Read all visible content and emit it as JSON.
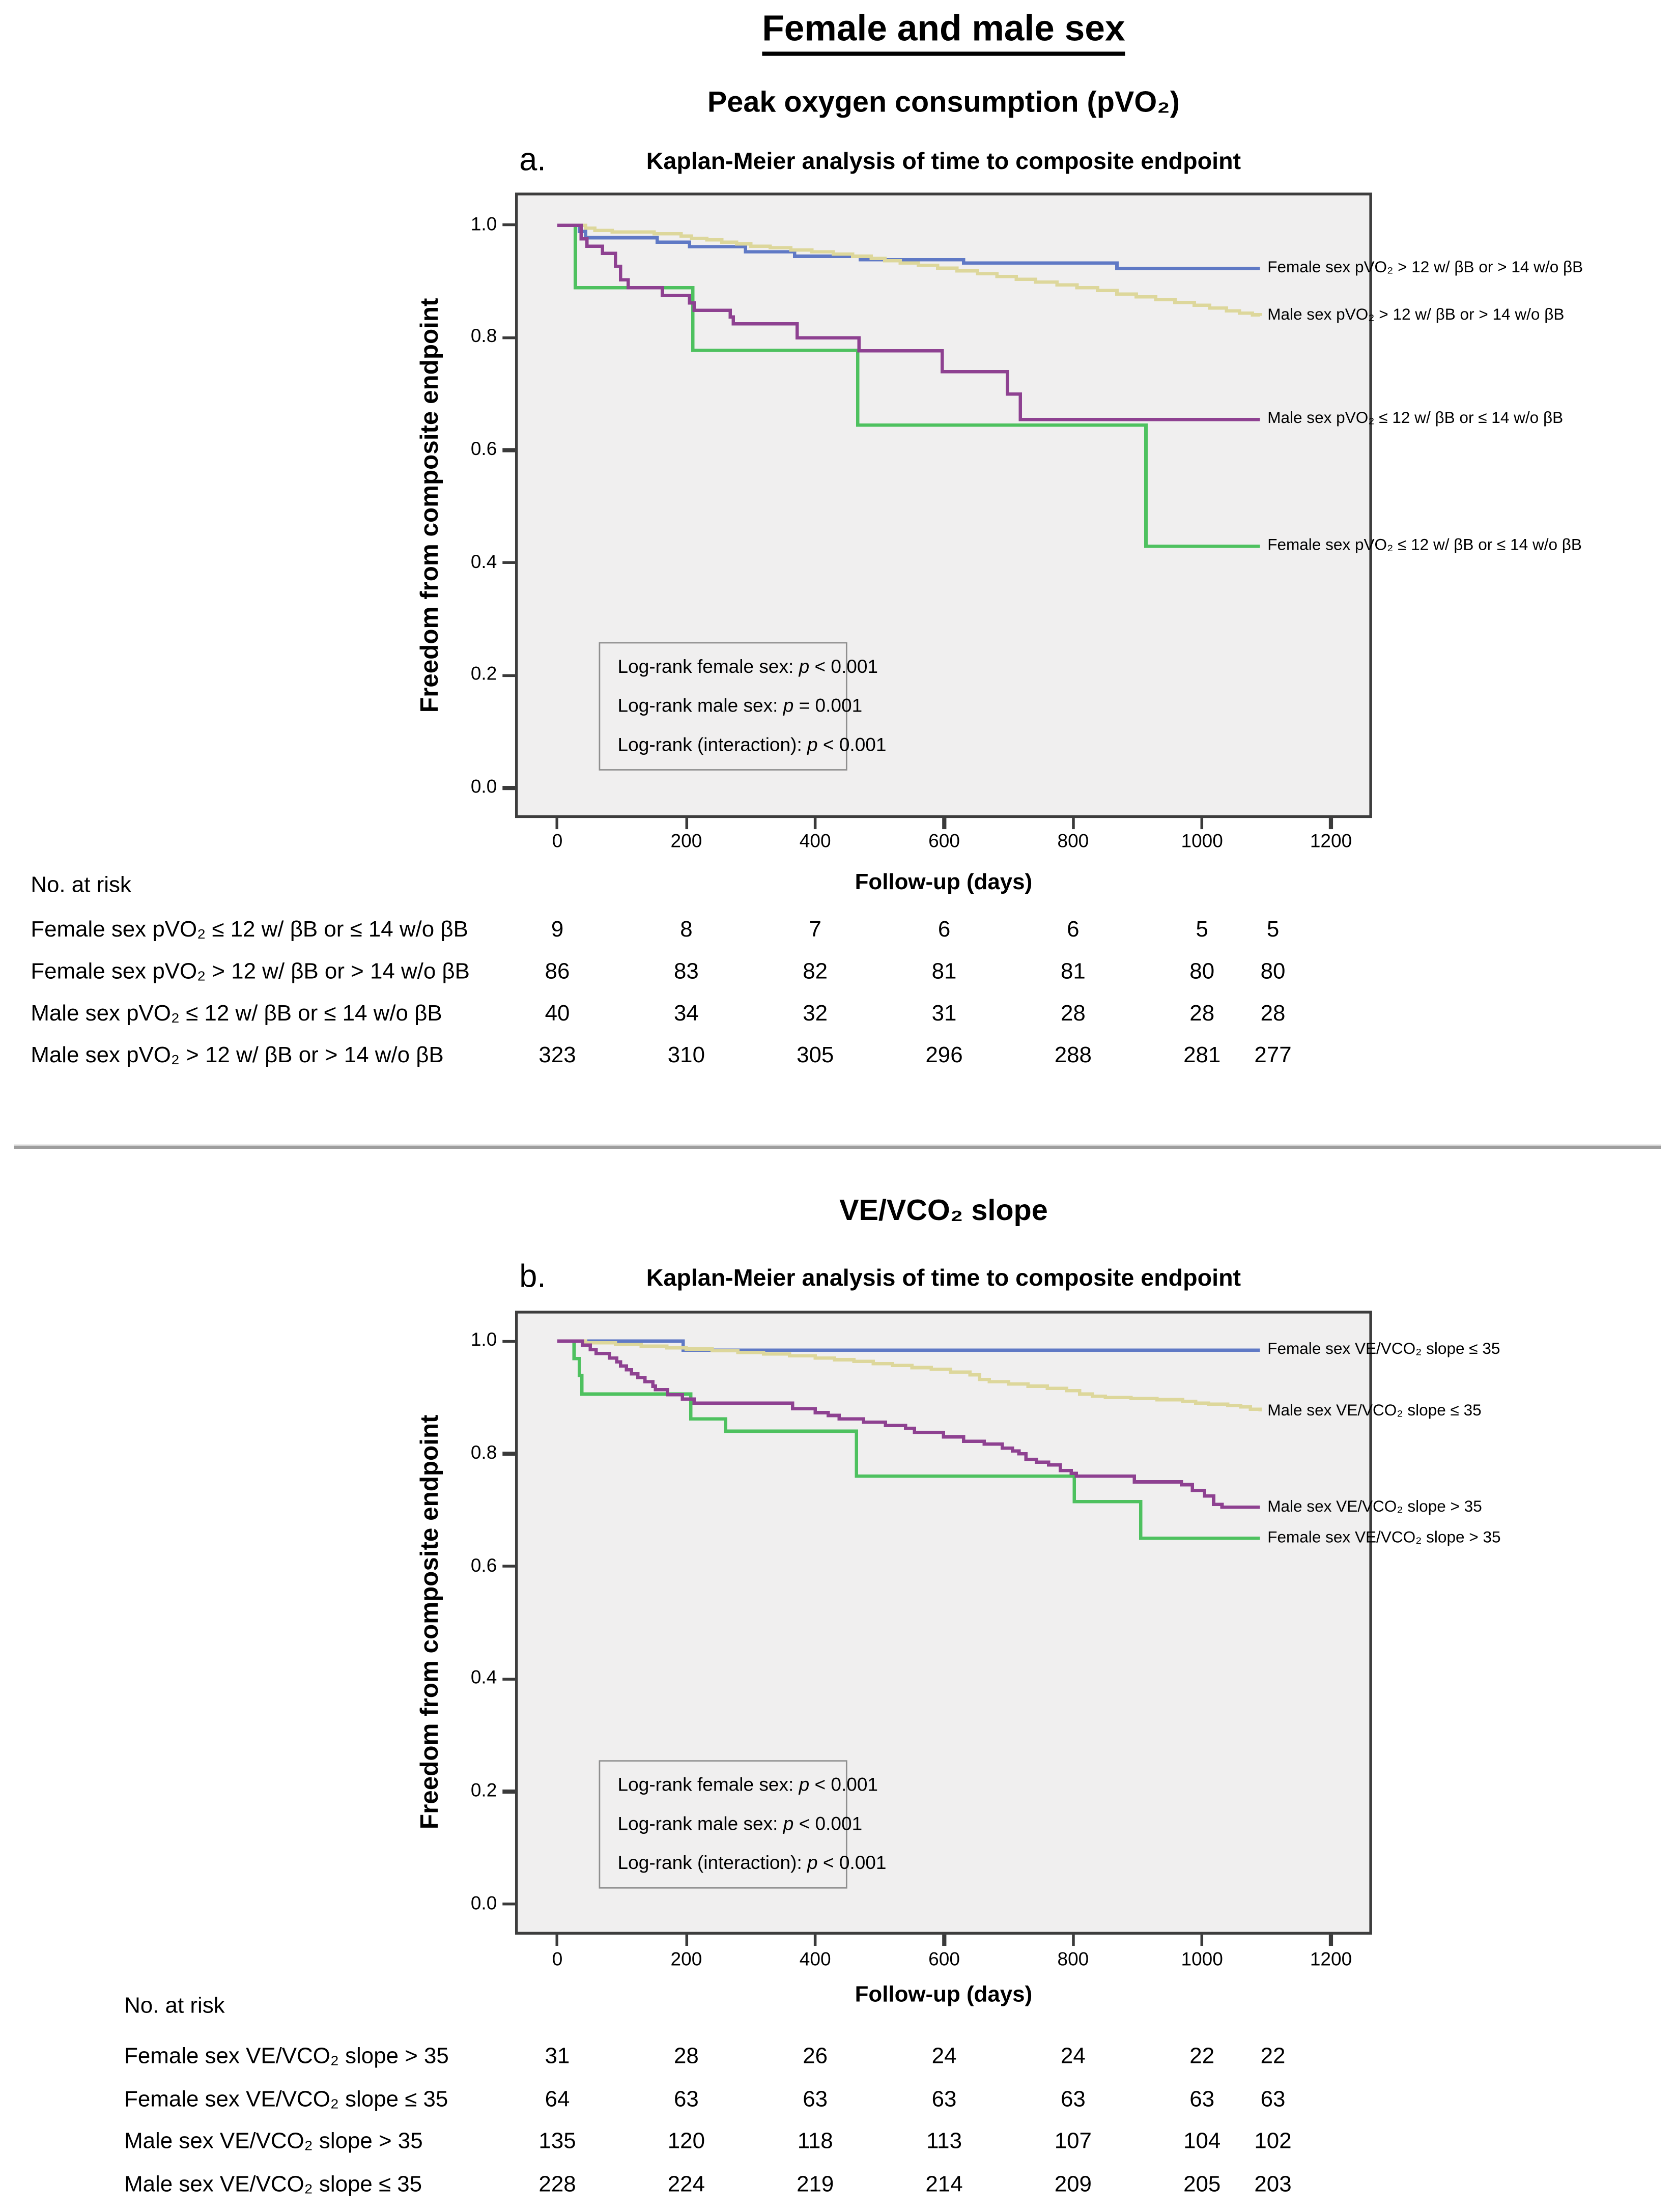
{
  "page_title": "Female and male sex",
  "chart_data": [
    {
      "type": "line",
      "step": true,
      "panel_letter": "a.",
      "section_title": "Peak oxygen consumption (pVO₂)",
      "title": "Kaplan-Meier analysis of time to composite endpoint",
      "xlabel": "Follow-up (days)",
      "ylabel": "Freedom from composite endpoint",
      "xlim": [
        0,
        1200
      ],
      "ylim": [
        0.0,
        1.0
      ],
      "x_ticks": [
        "0",
        "200",
        "400",
        "600",
        "800",
        "1000",
        "1200"
      ],
      "y_ticks": [
        "1.0",
        "0.8",
        "0.6",
        "0.4",
        "0.2",
        "0.0"
      ],
      "grid": false,
      "legend_position": "right",
      "plot_background": "#f0efef",
      "series": [
        {
          "name": "Female sex pVO₂ > 12 w/ βB or > 14 w/o βB",
          "color": "#5f79c5",
          "points": [
            [
              0,
              1
            ],
            [
              34,
              0.989
            ],
            [
              44,
              0.978
            ],
            [
              155,
              0.97
            ],
            [
              205,
              0.962
            ],
            [
              292,
              0.953
            ],
            [
              368,
              0.945
            ],
            [
              470,
              0.939
            ],
            [
              630,
              0.933
            ],
            [
              868,
              0.923
            ],
            [
              1090,
              0.923
            ]
          ]
        },
        {
          "name": "Male sex pVO₂ > 12 w/ βB or > 14 w/o βB",
          "color": "#ddd79b",
          "points": [
            [
              0,
              1
            ],
            [
              44,
              0.995
            ],
            [
              58,
              0.991
            ],
            [
              85,
              0.988
            ],
            [
              150,
              0.985
            ],
            [
              192,
              0.981
            ],
            [
              208,
              0.977
            ],
            [
              232,
              0.974
            ],
            [
              255,
              0.97
            ],
            [
              278,
              0.967
            ],
            [
              300,
              0.963
            ],
            [
              330,
              0.96
            ],
            [
              362,
              0.956
            ],
            [
              395,
              0.953
            ],
            [
              428,
              0.949
            ],
            [
              458,
              0.945
            ],
            [
              487,
              0.941
            ],
            [
              508,
              0.937
            ],
            [
              532,
              0.933
            ],
            [
              560,
              0.929
            ],
            [
              590,
              0.924
            ],
            [
              620,
              0.919
            ],
            [
              652,
              0.914
            ],
            [
              682,
              0.909
            ],
            [
              712,
              0.904
            ],
            [
              742,
              0.899
            ],
            [
              775,
              0.894
            ],
            [
              806,
              0.889
            ],
            [
              838,
              0.884
            ],
            [
              868,
              0.878
            ],
            [
              898,
              0.873
            ],
            [
              928,
              0.868
            ],
            [
              958,
              0.863
            ],
            [
              988,
              0.858
            ],
            [
              1012,
              0.853
            ],
            [
              1038,
              0.848
            ],
            [
              1058,
              0.844
            ],
            [
              1078,
              0.841
            ],
            [
              1090,
              0.839
            ]
          ]
        },
        {
          "name": "Male sex pVO₂ ≤ 12 w/ βB or ≤ 14 w/o βB",
          "color": "#8e4191",
          "points": [
            [
              0,
              1
            ],
            [
              37,
              0.976
            ],
            [
              46,
              0.963
            ],
            [
              70,
              0.95
            ],
            [
              90,
              0.927
            ],
            [
              98,
              0.903
            ],
            [
              110,
              0.889
            ],
            [
              163,
              0.875
            ],
            [
              205,
              0.862
            ],
            [
              212,
              0.849
            ],
            [
              268,
              0.837
            ],
            [
              273,
              0.825
            ],
            [
              372,
              0.8
            ],
            [
              468,
              0.777
            ],
            [
              597,
              0.74
            ],
            [
              698,
              0.7
            ],
            [
              718,
              0.655
            ],
            [
              1090,
              0.655
            ]
          ]
        },
        {
          "name": "Female sex pVO₂ ≤ 12 w/ βB or ≤ 14 w/o βB",
          "color": "#4ec15f",
          "points": [
            [
              0,
              1
            ],
            [
              28,
              0.889
            ],
            [
              210,
              0.778
            ],
            [
              466,
              0.645
            ],
            [
              913,
              0.43
            ],
            [
              1090,
              0.43
            ]
          ]
        }
      ],
      "logrank": [
        {
          "pre": "Log-rank female sex: ",
          "italic": "p",
          "post": " < 0.001"
        },
        {
          "pre": "Log-rank male sex: ",
          "italic": "p",
          "post": " = 0.001"
        },
        {
          "pre": "Log-rank (interaction): ",
          "italic": "p",
          "post": " < 0.001"
        }
      ],
      "risk_table": {
        "heading": "No. at risk",
        "columns_days": [
          0,
          200,
          400,
          600,
          800,
          1000,
          1110
        ],
        "rows": [
          {
            "label": "Female sex pVO₂ ≤ 12 w/ βB or ≤ 14 w/o βB",
            "values": [
              "9",
              "8",
              "7",
              "6",
              "6",
              "5",
              "5"
            ]
          },
          {
            "label": "Female sex pVO₂ > 12 w/ βB or > 14 w/o βB",
            "values": [
              "86",
              "83",
              "82",
              "81",
              "81",
              "80",
              "80"
            ]
          },
          {
            "label": "Male sex pVO₂ ≤ 12 w/ βB or ≤ 14 w/o βB",
            "values": [
              "40",
              "34",
              "32",
              "31",
              "28",
              "28",
              "28"
            ]
          },
          {
            "label": "Male sex pVO₂ > 12 w/ βB or > 14 w/o βB",
            "values": [
              "323",
              "310",
              "305",
              "296",
              "288",
              "281",
              "277"
            ]
          }
        ]
      }
    },
    {
      "type": "line",
      "step": true,
      "panel_letter": "b.",
      "section_title": "VE/VCO₂ slope",
      "title": "Kaplan-Meier analysis of time to composite endpoint",
      "xlabel": "Follow-up (days)",
      "ylabel": "Freedom from composite endpoint",
      "xlim": [
        0,
        1200
      ],
      "ylim": [
        0.0,
        1.0
      ],
      "x_ticks": [
        "0",
        "200",
        "400",
        "600",
        "800",
        "1000",
        "1200"
      ],
      "y_ticks": [
        "1.0",
        "0.8",
        "0.6",
        "0.4",
        "0.2",
        "0.0"
      ],
      "grid": false,
      "legend_position": "right",
      "plot_background": "#f0efef",
      "series": [
        {
          "name": "Female sex VE/VCO₂ slope ≤ 35",
          "color": "#5f79c5",
          "points": [
            [
              0,
              1
            ],
            [
              195,
              0.984
            ],
            [
              1090,
              0.984
            ]
          ]
        },
        {
          "name": "Male sex VE/VCO₂ slope ≤ 35",
          "color": "#ddd79b",
          "points": [
            [
              0,
              1
            ],
            [
              44,
              0.997
            ],
            [
              90,
              0.994
            ],
            [
              130,
              0.991
            ],
            [
              170,
              0.988
            ],
            [
              200,
              0.986
            ],
            [
              240,
              0.983
            ],
            [
              280,
              0.98
            ],
            [
              320,
              0.977
            ],
            [
              360,
              0.974
            ],
            [
              400,
              0.97
            ],
            [
              430,
              0.967
            ],
            [
              460,
              0.964
            ],
            [
              490,
              0.96
            ],
            [
              520,
              0.957
            ],
            [
              550,
              0.953
            ],
            [
              580,
              0.95
            ],
            [
              610,
              0.945
            ],
            [
              640,
              0.94
            ],
            [
              655,
              0.932
            ],
            [
              670,
              0.928
            ],
            [
              700,
              0.924
            ],
            [
              730,
              0.92
            ],
            [
              760,
              0.916
            ],
            [
              790,
              0.912
            ],
            [
              810,
              0.906
            ],
            [
              830,
              0.902
            ],
            [
              850,
              0.9
            ],
            [
              890,
              0.898
            ],
            [
              930,
              0.896
            ],
            [
              970,
              0.893
            ],
            [
              990,
              0.89
            ],
            [
              1010,
              0.888
            ],
            [
              1040,
              0.886
            ],
            [
              1060,
              0.883
            ],
            [
              1075,
              0.879
            ],
            [
              1090,
              0.875
            ]
          ]
        },
        {
          "name": "Male sex VE/VCO₂ slope > 35",
          "color": "#8e4191",
          "points": [
            [
              0,
              1
            ],
            [
              39,
              0.993
            ],
            [
              51,
              0.985
            ],
            [
              60,
              0.978
            ],
            [
              81,
              0.97
            ],
            [
              92,
              0.963
            ],
            [
              98,
              0.956
            ],
            [
              107,
              0.949
            ],
            [
              115,
              0.942
            ],
            [
              125,
              0.935
            ],
            [
              136,
              0.928
            ],
            [
              148,
              0.92
            ],
            [
              152,
              0.914
            ],
            [
              171,
              0.905
            ],
            [
              194,
              0.897
            ],
            [
              212,
              0.89
            ],
            [
              365,
              0.88
            ],
            [
              400,
              0.873
            ],
            [
              420,
              0.868
            ],
            [
              437,
              0.862
            ],
            [
              475,
              0.856
            ],
            [
              509,
              0.85
            ],
            [
              540,
              0.845
            ],
            [
              554,
              0.838
            ],
            [
              599,
              0.83
            ],
            [
              630,
              0.822
            ],
            [
              662,
              0.817
            ],
            [
              690,
              0.81
            ],
            [
              706,
              0.805
            ],
            [
              716,
              0.8
            ],
            [
              727,
              0.79
            ],
            [
              743,
              0.785
            ],
            [
              762,
              0.78
            ],
            [
              780,
              0.77
            ],
            [
              797,
              0.765
            ],
            [
              805,
              0.76
            ],
            [
              895,
              0.75
            ],
            [
              968,
              0.745
            ],
            [
              985,
              0.735
            ],
            [
              1004,
              0.725
            ],
            [
              1018,
              0.71
            ],
            [
              1031,
              0.705
            ],
            [
              1090,
              0.705
            ]
          ]
        },
        {
          "name": "Female sex VE/VCO₂ slope > 35",
          "color": "#4ec15f",
          "points": [
            [
              0,
              1
            ],
            [
              26,
              0.969
            ],
            [
              34,
              0.939
            ],
            [
              38,
              0.906
            ],
            [
              207,
              0.862
            ],
            [
              261,
              0.84
            ],
            [
              464,
              0.76
            ],
            [
              802,
              0.715
            ],
            [
              905,
              0.65
            ],
            [
              1090,
              0.65
            ]
          ]
        }
      ],
      "logrank": [
        {
          "pre": "Log-rank female sex: ",
          "italic": "p",
          "post": " < 0.001"
        },
        {
          "pre": "Log-rank male sex: ",
          "italic": "p",
          "post": " < 0.001"
        },
        {
          "pre": "Log-rank (interaction): ",
          "italic": "p",
          "post": " < 0.001"
        }
      ],
      "risk_table": {
        "heading": "No. at risk",
        "columns_days": [
          0,
          200,
          400,
          600,
          800,
          1000,
          1110
        ],
        "rows": [
          {
            "label": "Female sex VE/VCO₂ slope > 35",
            "values": [
              "31",
              "28",
              "26",
              "24",
              "24",
              "22",
              "22"
            ]
          },
          {
            "label": "Female sex VE/VCO₂ slope ≤ 35",
            "values": [
              "64",
              "63",
              "63",
              "63",
              "63",
              "63",
              "63"
            ]
          },
          {
            "label": "Male sex VE/VCO₂ slope > 35",
            "values": [
              "135",
              "120",
              "118",
              "113",
              "107",
              "104",
              "102"
            ]
          },
          {
            "label": "Male sex VE/VCO₂ slope ≤ 35",
            "values": [
              "228",
              "224",
              "219",
              "214",
              "209",
              "205",
              "203"
            ]
          }
        ]
      }
    }
  ]
}
